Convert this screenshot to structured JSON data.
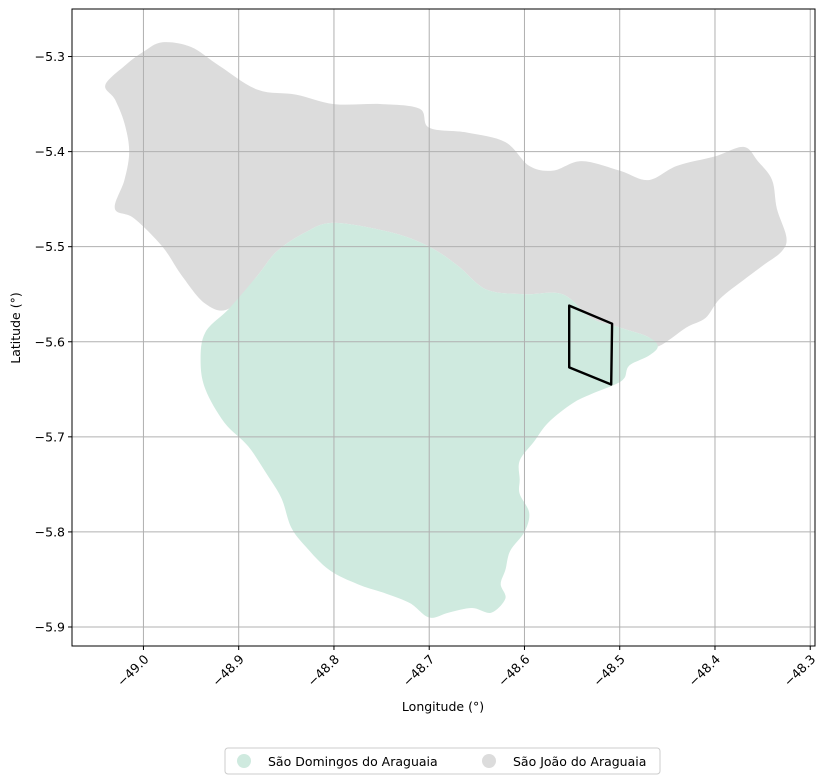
{
  "map": {
    "xlabel": "Longitude (°)",
    "ylabel": "Latitude (°)",
    "xlim": [
      -49.075,
      -48.295
    ],
    "ylim": [
      -5.92,
      -5.25
    ],
    "xticks": [
      -49.0,
      -48.9,
      -48.8,
      -48.7,
      -48.6,
      -48.5,
      -48.4,
      -48.3
    ],
    "xtick_labels": [
      "−49.0",
      "−48.9",
      "−48.8",
      "−48.7",
      "−48.6",
      "−48.5",
      "−48.4",
      "−48.3"
    ],
    "yticks": [
      -5.3,
      -5.4,
      -5.5,
      -5.6,
      -5.7,
      -5.8,
      -5.9
    ],
    "ytick_labels": [
      "−5.3",
      "−5.4",
      "−5.5",
      "−5.6",
      "−5.7",
      "−5.8",
      "−5.9"
    ],
    "grid": true,
    "legend_placement": "bottom-center",
    "colors": {
      "sao_domingos": "#cfeadf",
      "sao_joao": "#dcdcdc",
      "box_outline": "#000000",
      "grid": "#b0b0b0"
    },
    "regions": [
      {
        "name": "São Domingos do Araguaia",
        "color": "#cfeadf",
        "outline": [
          [
            -48.8,
            -5.475
          ],
          [
            -48.74,
            -5.485
          ],
          [
            -48.7,
            -5.5
          ],
          [
            -48.67,
            -5.52
          ],
          [
            -48.64,
            -5.545
          ],
          [
            -48.6,
            -5.55
          ],
          [
            -48.56,
            -5.55
          ],
          [
            -48.53,
            -5.575
          ],
          [
            -48.5,
            -5.585
          ],
          [
            -48.47,
            -5.595
          ],
          [
            -48.46,
            -5.605
          ],
          [
            -48.47,
            -5.615
          ],
          [
            -48.49,
            -5.625
          ],
          [
            -48.495,
            -5.638
          ],
          [
            -48.505,
            -5.645
          ],
          [
            -48.53,
            -5.655
          ],
          [
            -48.55,
            -5.665
          ],
          [
            -48.575,
            -5.685
          ],
          [
            -48.59,
            -5.705
          ],
          [
            -48.605,
            -5.725
          ],
          [
            -48.605,
            -5.745
          ],
          [
            -48.605,
            -5.76
          ],
          [
            -48.595,
            -5.78
          ],
          [
            -48.6,
            -5.8
          ],
          [
            -48.615,
            -5.82
          ],
          [
            -48.62,
            -5.84
          ],
          [
            -48.625,
            -5.855
          ],
          [
            -48.62,
            -5.87
          ],
          [
            -48.635,
            -5.885
          ],
          [
            -48.655,
            -5.88
          ],
          [
            -48.68,
            -5.885
          ],
          [
            -48.7,
            -5.89
          ],
          [
            -48.72,
            -5.875
          ],
          [
            -48.745,
            -5.865
          ],
          [
            -48.775,
            -5.855
          ],
          [
            -48.805,
            -5.84
          ],
          [
            -48.83,
            -5.815
          ],
          [
            -48.845,
            -5.795
          ],
          [
            -48.855,
            -5.765
          ],
          [
            -48.87,
            -5.74
          ],
          [
            -48.89,
            -5.71
          ],
          [
            -48.915,
            -5.685
          ],
          [
            -48.935,
            -5.65
          ],
          [
            -48.94,
            -5.62
          ],
          [
            -48.935,
            -5.59
          ],
          [
            -48.91,
            -5.565
          ],
          [
            -48.88,
            -5.53
          ],
          [
            -48.86,
            -5.505
          ],
          [
            -48.83,
            -5.485
          ]
        ]
      },
      {
        "name": "São João do Araguaia",
        "color": "#dcdcdc",
        "outline": [
          [
            -49.04,
            -5.33
          ],
          [
            -49.02,
            -5.31
          ],
          [
            -49.0,
            -5.295
          ],
          [
            -48.98,
            -5.285
          ],
          [
            -48.95,
            -5.29
          ],
          [
            -48.92,
            -5.31
          ],
          [
            -48.88,
            -5.335
          ],
          [
            -48.84,
            -5.34
          ],
          [
            -48.8,
            -5.35
          ],
          [
            -48.75,
            -5.35
          ],
          [
            -48.71,
            -5.355
          ],
          [
            -48.7,
            -5.375
          ],
          [
            -48.66,
            -5.38
          ],
          [
            -48.62,
            -5.39
          ],
          [
            -48.595,
            -5.415
          ],
          [
            -48.57,
            -5.42
          ],
          [
            -48.54,
            -5.41
          ],
          [
            -48.5,
            -5.42
          ],
          [
            -48.47,
            -5.43
          ],
          [
            -48.44,
            -5.415
          ],
          [
            -48.4,
            -5.405
          ],
          [
            -48.37,
            -5.395
          ],
          [
            -48.355,
            -5.41
          ],
          [
            -48.34,
            -5.43
          ],
          [
            -48.335,
            -5.46
          ],
          [
            -48.325,
            -5.49
          ],
          [
            -48.33,
            -5.505
          ],
          [
            -48.35,
            -5.52
          ],
          [
            -48.37,
            -5.535
          ],
          [
            -48.395,
            -5.555
          ],
          [
            -48.41,
            -5.575
          ],
          [
            -48.43,
            -5.585
          ],
          [
            -48.46,
            -5.605
          ],
          [
            -48.47,
            -5.595
          ],
          [
            -48.5,
            -5.585
          ],
          [
            -48.53,
            -5.575
          ],
          [
            -48.56,
            -5.55
          ],
          [
            -48.6,
            -5.55
          ],
          [
            -48.64,
            -5.545
          ],
          [
            -48.67,
            -5.52
          ],
          [
            -48.7,
            -5.5
          ],
          [
            -48.74,
            -5.485
          ],
          [
            -48.8,
            -5.475
          ],
          [
            -48.83,
            -5.485
          ],
          [
            -48.86,
            -5.505
          ],
          [
            -48.88,
            -5.53
          ],
          [
            -48.91,
            -5.565
          ],
          [
            -48.935,
            -5.56
          ],
          [
            -48.96,
            -5.53
          ],
          [
            -48.98,
            -5.5
          ],
          [
            -49.01,
            -5.47
          ],
          [
            -49.03,
            -5.46
          ],
          [
            -49.02,
            -5.43
          ],
          [
            -49.015,
            -5.4
          ],
          [
            -49.02,
            -5.37
          ],
          [
            -49.03,
            -5.345
          ]
        ]
      }
    ],
    "box": [
      [
        -48.553,
        -5.562
      ],
      [
        -48.508,
        -5.581
      ],
      [
        -48.509,
        -5.645
      ],
      [
        -48.553,
        -5.627
      ]
    ],
    "legend": [
      {
        "label": "São Domingos do Araguaia",
        "color": "#cfeadf"
      },
      {
        "label": "São João do Araguaia",
        "color": "#dcdcdc"
      }
    ]
  }
}
